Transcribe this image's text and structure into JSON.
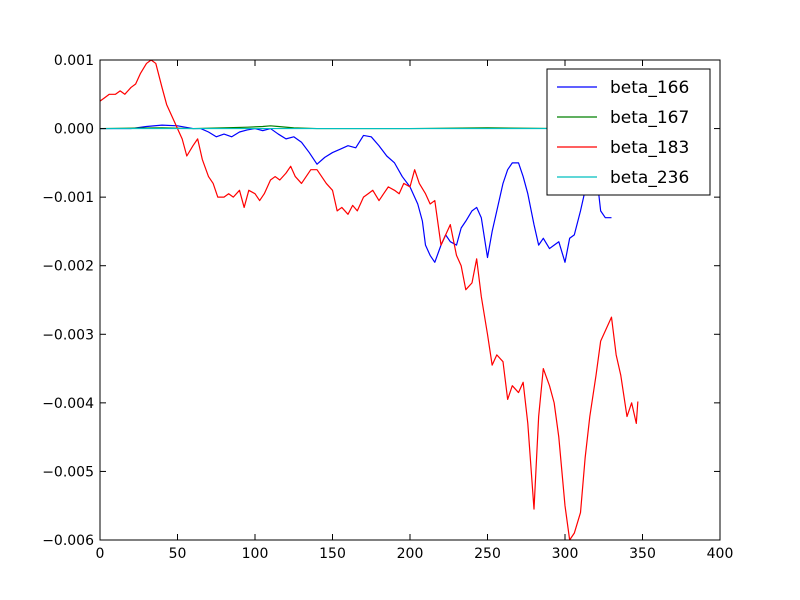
{
  "chart_data": {
    "type": "line",
    "title": "",
    "xlabel": "",
    "ylabel": "",
    "xlim": [
      0,
      400
    ],
    "ylim": [
      -0.006,
      0.001
    ],
    "xticks": [
      0,
      50,
      100,
      150,
      200,
      250,
      300,
      350,
      400
    ],
    "xtick_labels": [
      "0",
      "50",
      "100",
      "150",
      "200",
      "250",
      "300",
      "350",
      "400"
    ],
    "yticks": [
      0.001,
      0.0,
      -0.001,
      -0.002,
      -0.003,
      -0.004,
      -0.005,
      -0.006
    ],
    "ytick_labels": [
      "0.001",
      "0.000",
      "−0.001",
      "−0.002",
      "−0.003",
      "−0.004",
      "−0.005",
      "−0.006"
    ],
    "grid": false,
    "legend_position": "top-right",
    "series": [
      {
        "name": "beta_166",
        "color": "#0000ff",
        "x": [
          0,
          20,
          30,
          40,
          50,
          60,
          65,
          70,
          75,
          80,
          85,
          90,
          95,
          100,
          105,
          110,
          115,
          120,
          125,
          130,
          135,
          140,
          145,
          150,
          155,
          160,
          165,
          170,
          175,
          180,
          185,
          190,
          195,
          200,
          205,
          208,
          210,
          213,
          216,
          220,
          223,
          226,
          230,
          233,
          236,
          240,
          243,
          246,
          250,
          253,
          256,
          260,
          263,
          266,
          270,
          273,
          276,
          280,
          283,
          286,
          290,
          293,
          296,
          300,
          303,
          306,
          310,
          313,
          316,
          320,
          323,
          326,
          330
        ],
        "y": [
          0.0,
          0.0,
          3e-05,
          5e-05,
          4e-05,
          0.0,
          0.0,
          -5e-05,
          -0.00012,
          -8e-05,
          -0.00012,
          -5e-05,
          -2e-05,
          0.0,
          -3e-05,
          0.0,
          -8e-05,
          -0.00015,
          -0.00012,
          -0.0002,
          -0.00035,
          -0.00052,
          -0.00042,
          -0.00035,
          -0.0003,
          -0.00025,
          -0.00028,
          -0.0001,
          -0.00012,
          -0.00025,
          -0.0004,
          -0.0005,
          -0.0007,
          -0.00085,
          -0.0011,
          -0.00135,
          -0.0017,
          -0.00185,
          -0.00195,
          -0.0017,
          -0.00155,
          -0.00165,
          -0.0017,
          -0.00145,
          -0.00135,
          -0.0012,
          -0.00115,
          -0.0013,
          -0.00188,
          -0.0015,
          -0.0012,
          -0.0008,
          -0.0006,
          -0.0005,
          -0.0005,
          -0.0007,
          -0.00095,
          -0.0014,
          -0.0017,
          -0.0016,
          -0.00175,
          -0.0017,
          -0.00165,
          -0.00195,
          -0.0016,
          -0.00155,
          -0.0012,
          -0.0009,
          -0.0007,
          -0.0006,
          -0.0012,
          -0.0013,
          -0.0013
        ]
      },
      {
        "name": "beta_167",
        "color": "#008000",
        "x": [
          0,
          40,
          60,
          80,
          95,
          105,
          110,
          115,
          125,
          140,
          170,
          200,
          250,
          300,
          330
        ],
        "y": [
          0.0,
          1e-05,
          0.0,
          1e-05,
          2e-05,
          3e-05,
          4e-05,
          3e-05,
          1e-05,
          0.0,
          0.0,
          0.0,
          1e-05,
          0.0,
          0.0
        ]
      },
      {
        "name": "beta_183",
        "color": "#ff0000",
        "x": [
          0,
          3,
          6,
          10,
          13,
          16,
          20,
          23,
          26,
          30,
          33,
          36,
          40,
          43,
          46,
          50,
          53,
          56,
          60,
          63,
          66,
          70,
          73,
          76,
          80,
          83,
          86,
          90,
          93,
          96,
          100,
          103,
          106,
          110,
          113,
          116,
          120,
          123,
          126,
          130,
          133,
          136,
          140,
          143,
          146,
          150,
          153,
          156,
          160,
          163,
          166,
          170,
          173,
          176,
          180,
          183,
          186,
          190,
          193,
          196,
          200,
          203,
          206,
          210,
          213,
          216,
          220,
          223,
          226,
          230,
          233,
          236,
          240,
          243,
          246,
          250,
          253,
          256,
          260,
          263,
          266,
          270,
          273,
          276,
          280,
          283,
          286,
          290,
          293,
          296,
          300,
          303,
          306,
          310,
          313,
          316,
          320,
          323,
          326,
          330,
          333,
          336,
          340,
          343,
          346,
          347
        ],
        "y": [
          0.0004,
          0.00045,
          0.0005,
          0.0005,
          0.00055,
          0.0005,
          0.0006,
          0.00065,
          0.0008,
          0.00095,
          0.001,
          0.00095,
          0.0006,
          0.00035,
          0.0002,
          0.0,
          -0.00015,
          -0.0004,
          -0.00025,
          -0.00015,
          -0.00045,
          -0.0007,
          -0.0008,
          -0.001,
          -0.001,
          -0.00095,
          -0.001,
          -0.0009,
          -0.00115,
          -0.0009,
          -0.00095,
          -0.00105,
          -0.00095,
          -0.00075,
          -0.0007,
          -0.00075,
          -0.00065,
          -0.00055,
          -0.0007,
          -0.0008,
          -0.0007,
          -0.0006,
          -0.0006,
          -0.0007,
          -0.0008,
          -0.0009,
          -0.0012,
          -0.00115,
          -0.00125,
          -0.00112,
          -0.0012,
          -0.001,
          -0.00095,
          -0.0009,
          -0.00105,
          -0.00095,
          -0.00085,
          -0.0009,
          -0.00095,
          -0.0008,
          -0.00085,
          -0.0006,
          -0.0008,
          -0.00095,
          -0.0011,
          -0.00105,
          -0.0017,
          -0.00155,
          -0.0014,
          -0.00185,
          -0.002,
          -0.00235,
          -0.00225,
          -0.0019,
          -0.00245,
          -0.003,
          -0.00345,
          -0.0033,
          -0.0034,
          -0.00395,
          -0.00375,
          -0.00385,
          -0.0037,
          -0.0043,
          -0.00555,
          -0.0042,
          -0.0035,
          -0.00375,
          -0.004,
          -0.0045,
          -0.0055,
          -0.006,
          -0.0059,
          -0.0056,
          -0.0048,
          -0.0042,
          -0.0036,
          -0.0031,
          -0.00295,
          -0.00275,
          -0.0033,
          -0.0036,
          -0.0042,
          -0.004,
          -0.0043,
          -0.00398
        ]
      },
      {
        "name": "beta_236",
        "color": "#00bfbf",
        "x": [
          0,
          50,
          100,
          150,
          200,
          250,
          300,
          330
        ],
        "y": [
          0.0,
          0.0,
          0.0,
          0.0,
          0.0,
          0.0,
          0.0,
          0.0
        ]
      }
    ]
  }
}
